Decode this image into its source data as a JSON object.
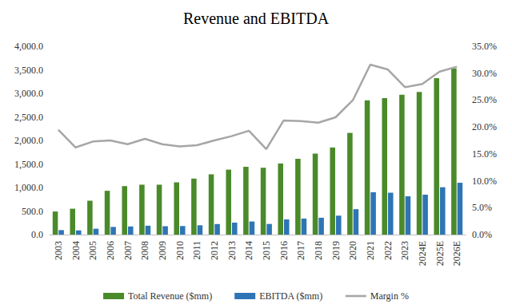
{
  "chart_data": {
    "type": "bar",
    "title": "Revenue and EBITDA",
    "categories": [
      "2003",
      "2004",
      "2005",
      "2006",
      "2007",
      "2008",
      "2009",
      "2010",
      "2011",
      "2012",
      "2013",
      "2014",
      "2015",
      "2016",
      "2017",
      "2018",
      "2019",
      "2020",
      "2021",
      "2022",
      "2023",
      "2024E",
      "2025E",
      "2026E"
    ],
    "series": [
      {
        "name": "Total Revenue ($mm)",
        "type": "bar",
        "color": "#4a8a2a",
        "values": [
          490,
          550,
          720,
          930,
          1030,
          1060,
          1060,
          1110,
          1190,
          1280,
          1380,
          1440,
          1420,
          1510,
          1610,
          1720,
          1850,
          2160,
          2850,
          2900,
          2970,
          3030,
          3320,
          3530
        ]
      },
      {
        "name": "EBITDA ($mm)",
        "type": "bar",
        "color": "#2e75b6",
        "values": [
          95,
          89,
          125,
          163,
          173,
          189,
          178,
          182,
          198,
          224,
          253,
          278,
          226,
          320,
          340,
          358,
          403,
          540,
          900,
          890,
          814,
          848,
          1006,
          1101
        ]
      },
      {
        "name": "Margin %",
        "type": "line",
        "axis": "y2",
        "color": "#a6a6a6",
        "values": [
          19.5,
          16.2,
          17.3,
          17.5,
          16.8,
          17.8,
          16.8,
          16.4,
          16.6,
          17.5,
          18.3,
          19.3,
          15.9,
          21.2,
          21.1,
          20.8,
          21.8,
          25.0,
          31.6,
          30.7,
          27.4,
          28.0,
          30.3,
          31.2
        ]
      }
    ],
    "ylim": [
      0,
      4000
    ],
    "yticks": [
      {
        "value": 0,
        "label": "0.0"
      },
      {
        "value": 500,
        "label": "500.0"
      },
      {
        "value": 1000,
        "label": "1,000.0"
      },
      {
        "value": 1500,
        "label": "1,500.0"
      },
      {
        "value": 2000,
        "label": "2,000.0"
      },
      {
        "value": 2500,
        "label": "2,500.0"
      },
      {
        "value": 3000,
        "label": "3,000.0"
      },
      {
        "value": 3500,
        "label": "3,500.0"
      },
      {
        "value": 4000,
        "label": "4,000.0"
      }
    ],
    "y2lim": [
      0,
      35
    ],
    "y2ticks": [
      {
        "value": 0,
        "label": "0.0%"
      },
      {
        "value": 5,
        "label": "5.0%"
      },
      {
        "value": 10,
        "label": "10.0%"
      },
      {
        "value": 15,
        "label": "15.0%"
      },
      {
        "value": 20,
        "label": "20.0%"
      },
      {
        "value": 25,
        "label": "25.0%"
      },
      {
        "value": 30,
        "label": "30.0%"
      },
      {
        "value": 35,
        "label": "35.0%"
      }
    ],
    "grid": false,
    "legend": "bottom"
  }
}
